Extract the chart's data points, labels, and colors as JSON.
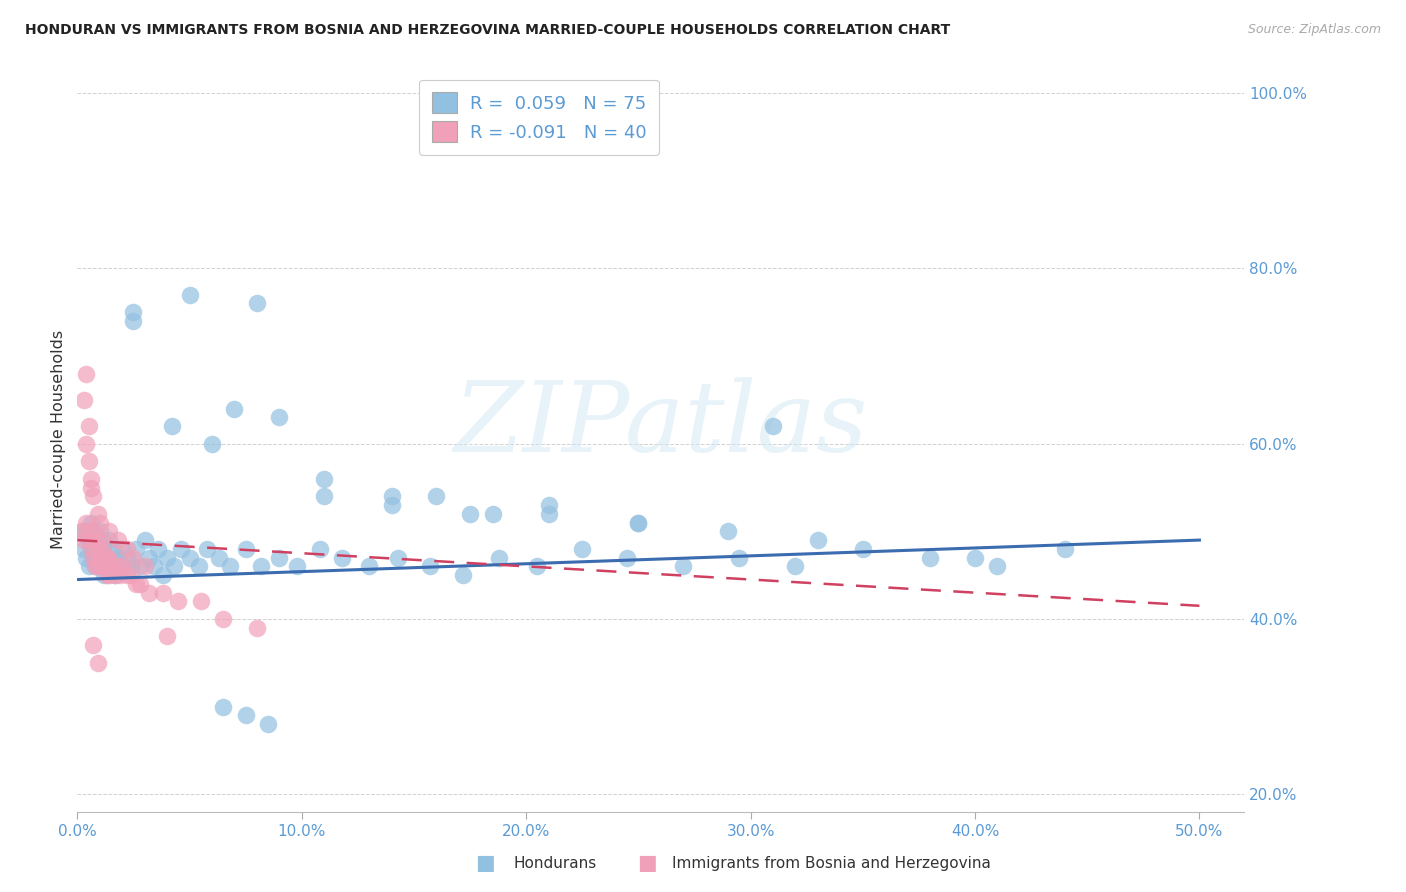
{
  "title": "HONDURAN VS IMMIGRANTS FROM BOSNIA AND HERZEGOVINA MARRIED-COUPLE HOUSEHOLDS CORRELATION CHART",
  "source": "Source: ZipAtlas.com",
  "ylabel": "Married-couple Households",
  "ytick_vals": [
    0.2,
    0.4,
    0.6,
    0.8,
    1.0
  ],
  "ytick_labels": [
    "20.0%",
    "40.0%",
    "60.0%",
    "80.0%",
    "100.0%"
  ],
  "xtick_vals": [
    0.0,
    0.1,
    0.2,
    0.3,
    0.4,
    0.5
  ],
  "xtick_labels": [
    "0.0%",
    "10.0%",
    "20.0%",
    "30.0%",
    "40.0%",
    "50.0%"
  ],
  "xlim": [
    0.0,
    0.52
  ],
  "ylim": [
    0.18,
    1.03
  ],
  "watermark": "ZIPatlas",
  "legend1_label": "Hondurans",
  "legend2_label": "Immigrants from Bosnia and Herzegovina",
  "R1": 0.059,
  "N1": 75,
  "R2": -0.091,
  "N2": 40,
  "blue_color": "#92c0e0",
  "pink_color": "#f0a0b8",
  "blue_line_color": "#3c6cb0",
  "pink_line_color": "#d04060",
  "blue_scatter_x": [
    0.002,
    0.003,
    0.004,
    0.004,
    0.005,
    0.005,
    0.006,
    0.006,
    0.007,
    0.007,
    0.008,
    0.008,
    0.009,
    0.01,
    0.01,
    0.011,
    0.012,
    0.012,
    0.013,
    0.014,
    0.015,
    0.016,
    0.017,
    0.018,
    0.019,
    0.02,
    0.022,
    0.024,
    0.026,
    0.028,
    0.03,
    0.032,
    0.034,
    0.036,
    0.038,
    0.04,
    0.043,
    0.046,
    0.05,
    0.054,
    0.058,
    0.063,
    0.068,
    0.075,
    0.082,
    0.09,
    0.098,
    0.108,
    0.118,
    0.13,
    0.143,
    0.157,
    0.172,
    0.188,
    0.205,
    0.225,
    0.245,
    0.27,
    0.295,
    0.32,
    0.35,
    0.38,
    0.41,
    0.44,
    0.025,
    0.042,
    0.06,
    0.08,
    0.11,
    0.14,
    0.175,
    0.21,
    0.25,
    0.31,
    0.4
  ],
  "blue_scatter_y": [
    0.5,
    0.48,
    0.5,
    0.47,
    0.49,
    0.46,
    0.51,
    0.48,
    0.5,
    0.47,
    0.49,
    0.46,
    0.48,
    0.5,
    0.46,
    0.49,
    0.48,
    0.45,
    0.47,
    0.49,
    0.46,
    0.48,
    0.45,
    0.47,
    0.46,
    0.48,
    0.47,
    0.46,
    0.48,
    0.46,
    0.49,
    0.47,
    0.46,
    0.48,
    0.45,
    0.47,
    0.46,
    0.48,
    0.47,
    0.46,
    0.48,
    0.47,
    0.46,
    0.48,
    0.46,
    0.47,
    0.46,
    0.48,
    0.47,
    0.46,
    0.47,
    0.46,
    0.45,
    0.47,
    0.46,
    0.48,
    0.47,
    0.46,
    0.47,
    0.46,
    0.48,
    0.47,
    0.46,
    0.48,
    0.74,
    0.62,
    0.6,
    0.76,
    0.54,
    0.53,
    0.52,
    0.53,
    0.51,
    0.62,
    0.47
  ],
  "blue_scatter_x2": [
    0.025,
    0.05,
    0.07,
    0.09,
    0.11,
    0.14,
    0.16,
    0.185,
    0.21,
    0.25,
    0.29,
    0.33,
    0.065,
    0.075,
    0.085
  ],
  "blue_scatter_y2": [
    0.75,
    0.77,
    0.64,
    0.63,
    0.56,
    0.54,
    0.54,
    0.52,
    0.52,
    0.51,
    0.5,
    0.49,
    0.3,
    0.29,
    0.28
  ],
  "pink_scatter_x": [
    0.002,
    0.003,
    0.004,
    0.005,
    0.006,
    0.006,
    0.007,
    0.007,
    0.008,
    0.008,
    0.009,
    0.009,
    0.01,
    0.01,
    0.011,
    0.011,
    0.012,
    0.012,
    0.013,
    0.013,
    0.014,
    0.014,
    0.015,
    0.016,
    0.017,
    0.018,
    0.019,
    0.02,
    0.022,
    0.024,
    0.026,
    0.028,
    0.032,
    0.038,
    0.045,
    0.055,
    0.065,
    0.08,
    0.004,
    0.005
  ],
  "pink_scatter_y": [
    0.5,
    0.49,
    0.51,
    0.5,
    0.49,
    0.48,
    0.5,
    0.47,
    0.49,
    0.46,
    0.48,
    0.46,
    0.49,
    0.47,
    0.48,
    0.46,
    0.47,
    0.46,
    0.47,
    0.45,
    0.47,
    0.45,
    0.46,
    0.46,
    0.45,
    0.46,
    0.45,
    0.46,
    0.45,
    0.45,
    0.44,
    0.44,
    0.43,
    0.43,
    0.42,
    0.42,
    0.4,
    0.39,
    0.68,
    0.62
  ],
  "pink_scatter_x2": [
    0.003,
    0.004,
    0.005,
    0.006,
    0.006,
    0.007,
    0.009,
    0.01,
    0.014,
    0.018,
    0.022,
    0.025,
    0.03,
    0.04,
    0.007,
    0.009
  ],
  "pink_scatter_y2": [
    0.65,
    0.6,
    0.58,
    0.56,
    0.55,
    0.54,
    0.52,
    0.51,
    0.5,
    0.49,
    0.48,
    0.47,
    0.46,
    0.38,
    0.37,
    0.35
  ]
}
